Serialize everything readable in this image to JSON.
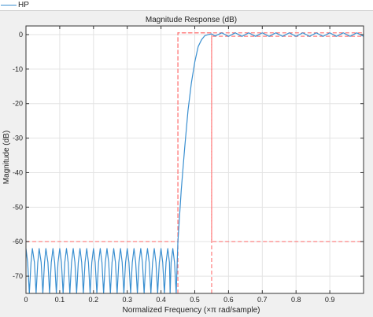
{
  "legend": {
    "label": "HP",
    "color": "#3a8fd0"
  },
  "chart_data": {
    "type": "line",
    "title": "Magnitude Response (dB)",
    "xlabel": "Normalized Frequency (×π rad/sample)",
    "ylabel": "Magnitude (dB)",
    "xlim": [
      0,
      1
    ],
    "ylim": [
      -75,
      2.5
    ],
    "x_ticks": [
      0,
      0.1,
      0.2,
      0.3,
      0.4,
      0.5,
      0.6,
      0.7,
      0.8,
      0.9
    ],
    "x_tick_labels": [
      "0",
      "0.1",
      "0.2",
      "0.3",
      "0.4",
      "0.5",
      "0.6",
      "0.7",
      "0.8",
      "0.9"
    ],
    "y_ticks": [
      0,
      -10,
      -20,
      -30,
      -40,
      -50,
      -60,
      -70
    ],
    "y_tick_labels": [
      "0",
      "-10",
      "-20",
      "-30",
      "-40",
      "-50",
      "-60",
      "-70"
    ],
    "grid": true,
    "colors": {
      "response": "#3a8fd0",
      "mask": "#ff7b7b",
      "grid": "#e3e3e3"
    },
    "series": [
      {
        "name": "HP",
        "x": [
          0.0,
          0.005,
          0.01,
          0.015,
          0.019,
          0.025,
          0.03,
          0.035,
          0.039,
          0.045,
          0.05,
          0.055,
          0.059,
          0.065,
          0.07,
          0.075,
          0.08,
          0.085,
          0.09,
          0.095,
          0.1,
          0.105,
          0.11,
          0.115,
          0.12,
          0.125,
          0.13,
          0.135,
          0.14,
          0.145,
          0.15,
          0.155,
          0.16,
          0.165,
          0.17,
          0.175,
          0.18,
          0.185,
          0.19,
          0.195,
          0.2,
          0.205,
          0.21,
          0.215,
          0.22,
          0.225,
          0.23,
          0.235,
          0.24,
          0.245,
          0.25,
          0.255,
          0.26,
          0.265,
          0.27,
          0.275,
          0.28,
          0.285,
          0.29,
          0.295,
          0.3,
          0.305,
          0.31,
          0.315,
          0.32,
          0.325,
          0.33,
          0.335,
          0.34,
          0.345,
          0.35,
          0.355,
          0.36,
          0.365,
          0.37,
          0.375,
          0.38,
          0.385,
          0.39,
          0.395,
          0.4,
          0.405,
          0.41,
          0.415,
          0.42,
          0.425,
          0.427,
          0.43,
          0.435,
          0.44,
          0.445,
          0.45,
          0.46,
          0.47,
          0.48,
          0.49,
          0.5,
          0.51,
          0.52,
          0.53,
          0.54,
          0.55,
          0.56,
          0.58,
          0.6,
          0.62,
          0.64,
          0.66,
          0.68,
          0.7,
          0.72,
          0.74,
          0.76,
          0.78,
          0.8,
          0.82,
          0.84,
          0.86,
          0.88,
          0.9,
          0.92,
          0.94,
          0.96,
          0.98,
          1.0
        ],
        "y": [
          -62,
          -66,
          -75,
          -66,
          -62,
          -66,
          -75,
          -66,
          -62,
          -66,
          -75,
          -66,
          -62,
          -66,
          -75,
          -66,
          -62,
          -66,
          -75,
          -66,
          -62,
          -66,
          -75,
          -66,
          -62,
          -66,
          -75,
          -66,
          -62,
          -66,
          -75,
          -66,
          -62,
          -66,
          -75,
          -66,
          -62,
          -66,
          -75,
          -66,
          -62,
          -66,
          -75,
          -66,
          -62,
          -66,
          -75,
          -66,
          -62,
          -66,
          -75,
          -66,
          -62,
          -66,
          -75,
          -66,
          -62,
          -66,
          -75,
          -66,
          -62,
          -66,
          -75,
          -66,
          -62,
          -66,
          -75,
          -66,
          -62,
          -66,
          -75,
          -66,
          -62,
          -66,
          -75,
          -66,
          -62,
          -66,
          -75,
          -66,
          -62,
          -66,
          -75,
          -66,
          -62,
          -66,
          -75,
          -66,
          -62,
          -66,
          -75,
          -60,
          -45,
          -33,
          -22,
          -14,
          -8,
          -3.5,
          -1.5,
          -0.3,
          0,
          0.2,
          -0.4,
          0.5,
          -0.5,
          0.5,
          -0.5,
          0.5,
          -0.5,
          0.5,
          -0.5,
          0.5,
          -0.5,
          0.5,
          -0.5,
          0.5,
          -0.5,
          0.5,
          -0.5,
          0.5,
          -0.5,
          0.5,
          -0.5,
          0.5,
          -0.5
        ]
      }
    ],
    "mask": {
      "x": [
        0,
        0.45,
        0.45,
        0.55,
        0.55,
        1.0
      ],
      "y": [
        -60,
        -60,
        0.5,
        0.5,
        -60,
        -60
      ],
      "upper_x": [
        0.45,
        0.45,
        1.0
      ],
      "upper_y": [
        -75,
        0.5,
        0.5
      ],
      "lower_x": [
        0.55,
        0.55,
        1.0
      ],
      "lower_y": [
        -75,
        -0.5,
        -0.5
      ]
    }
  }
}
